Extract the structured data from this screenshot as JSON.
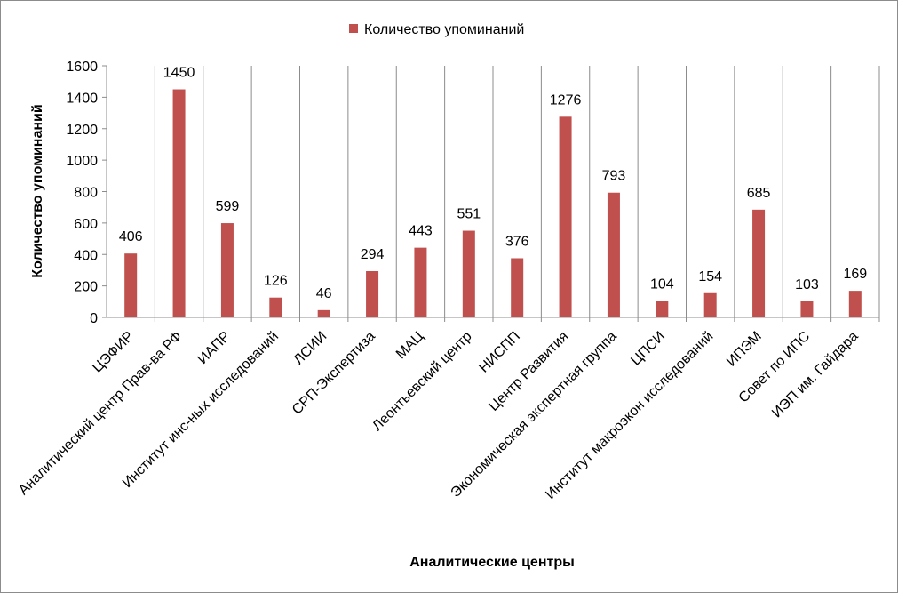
{
  "chart_data": {
    "type": "bar",
    "title": "",
    "xlabel": "Аналитические центры",
    "ylabel": "Количество упоминаний",
    "ylim": [
      0,
      1600
    ],
    "yticks": [
      0,
      200,
      400,
      600,
      800,
      1000,
      1200,
      1400,
      1600
    ],
    "grid": "vertical category separators",
    "legend_position": "top",
    "categories": [
      "ЦЭФИР",
      "Аналитический центр Прав-ва РФ",
      "ИАПР",
      "Институт инс-ных исследований",
      "ЛСИИ",
      "СРП-Экспертиза",
      "МАЦ",
      "Леонтьевский центр",
      "НИСПП",
      "Центр Развития",
      "Экономическая экспертная группа",
      "ЦПСИ",
      "Институт макроэкон исследований",
      "ИПЭМ",
      "Совет по ИПС",
      "ИЭП им. Гайдара"
    ],
    "series": [
      {
        "name": "Количество упоминаний",
        "color": "#c0504d",
        "values": [
          406,
          1450,
          599,
          126,
          46,
          294,
          443,
          551,
          376,
          1276,
          793,
          104,
          154,
          685,
          103,
          169
        ]
      }
    ]
  }
}
